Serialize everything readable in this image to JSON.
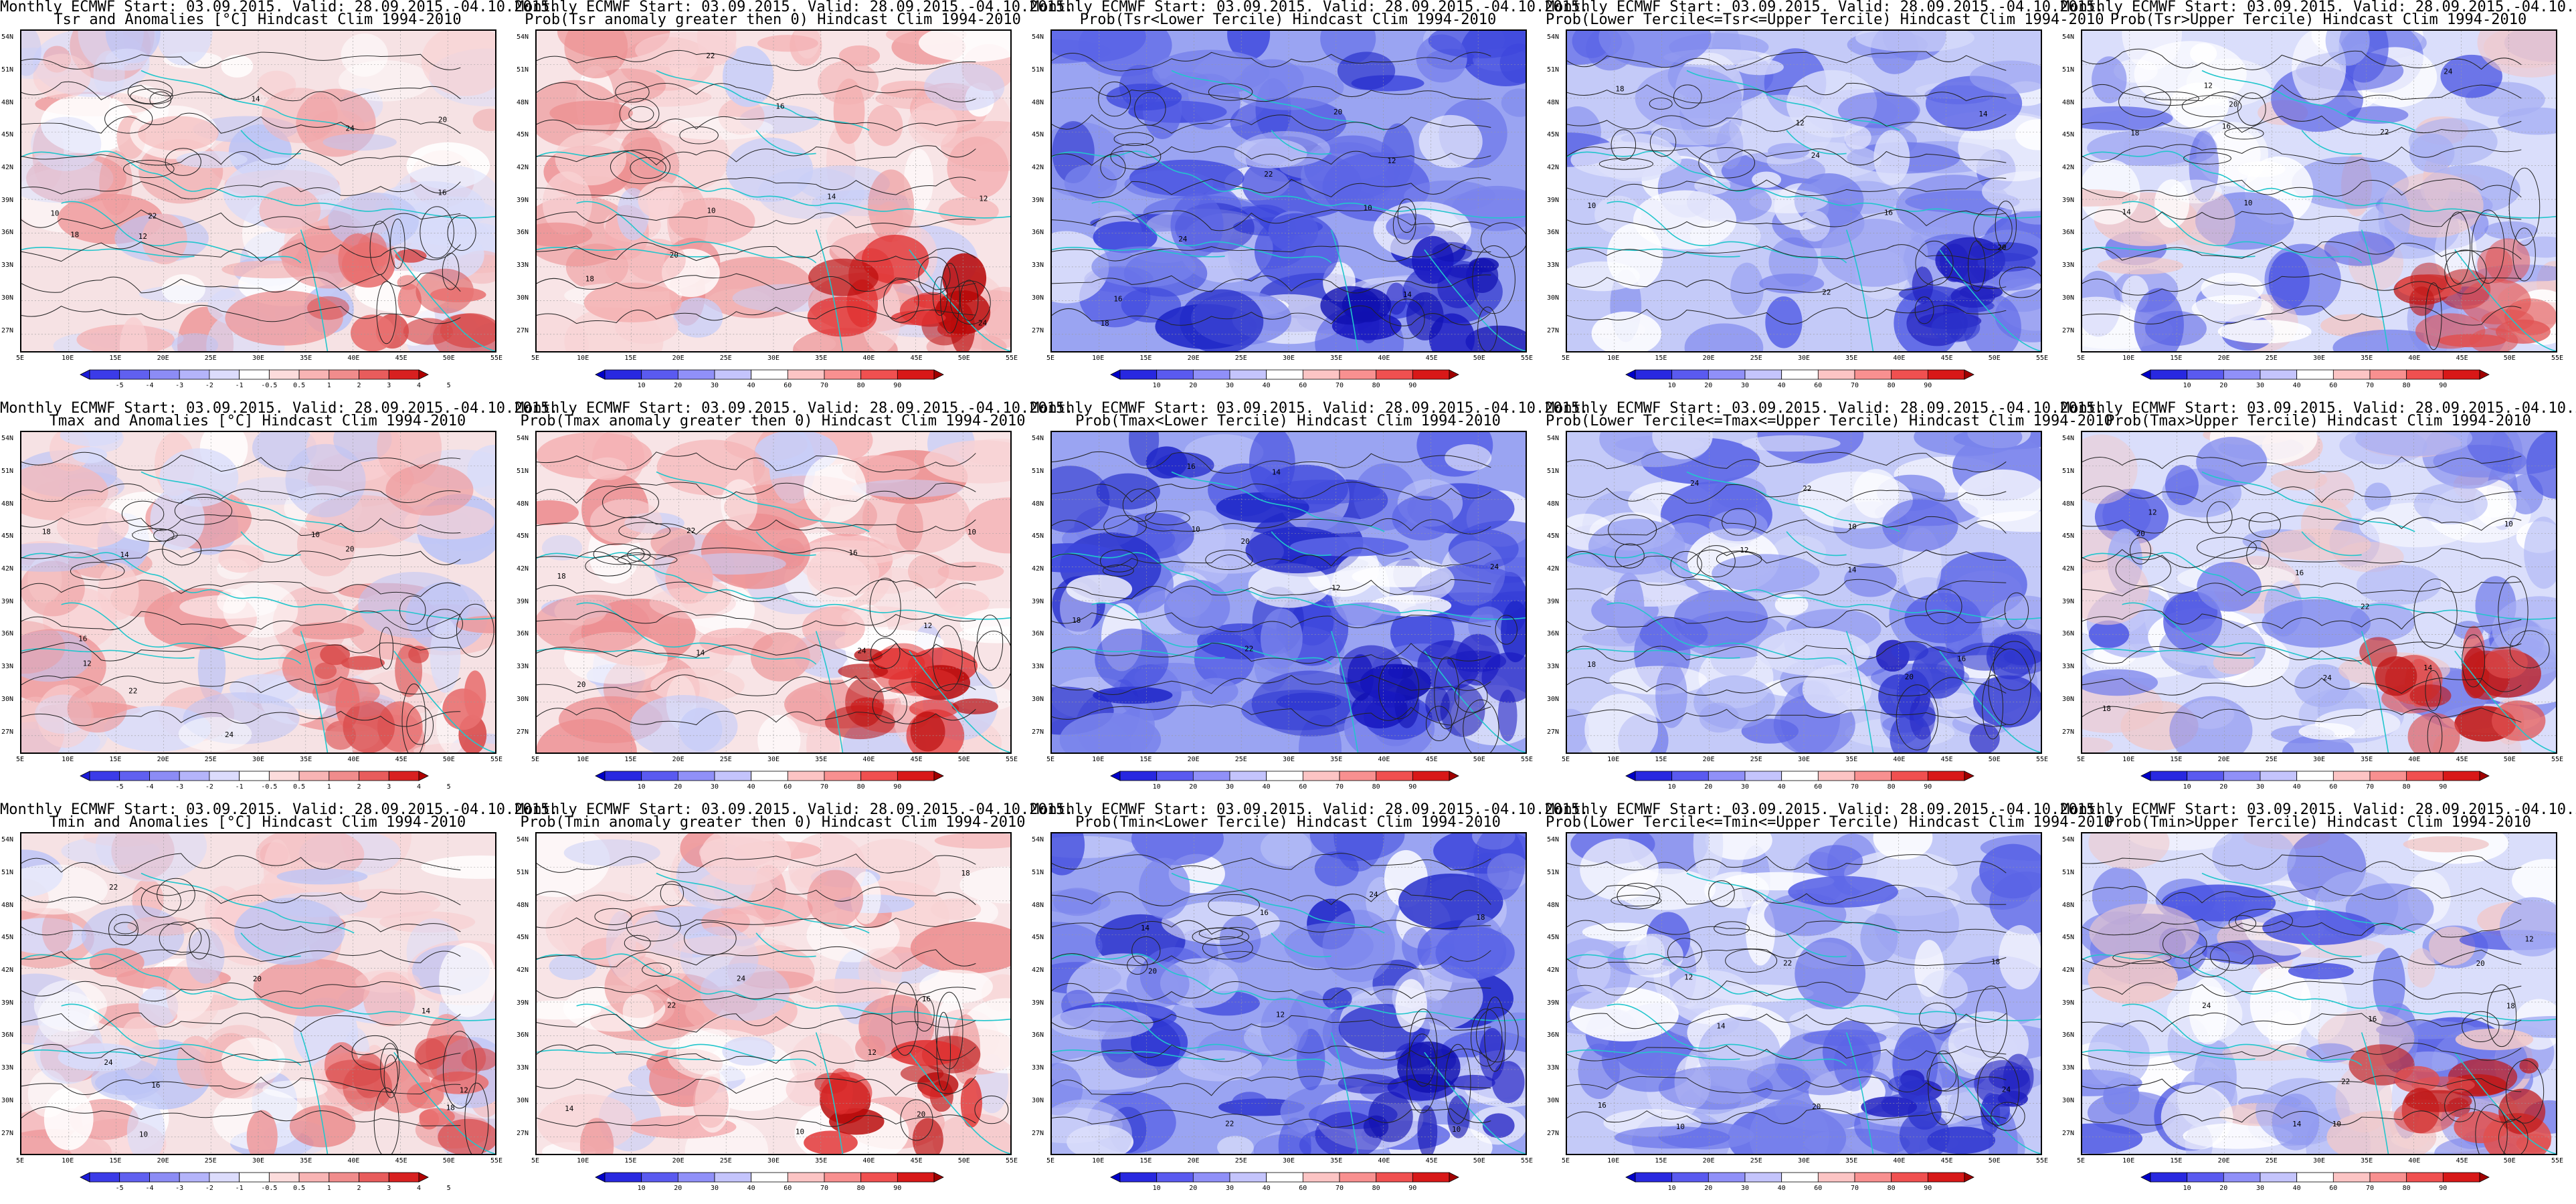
{
  "figure": {
    "title_line1": "Monthly ECMWF Start: 03.09.2015. Valid: 28.09.2015.-04.10.2015.",
    "lat_labels": [
      "54N",
      "51N",
      "48N",
      "45N",
      "42N",
      "39N",
      "36N",
      "33N",
      "30N",
      "27N"
    ],
    "lon_labels": [
      "5E",
      "10E",
      "15E",
      "20E",
      "25E",
      "30E",
      "35E",
      "40E",
      "45E",
      "50E",
      "55E"
    ],
    "contour_labels": [
      "10",
      "12",
      "14",
      "16",
      "18",
      "20",
      "22",
      "24",
      "26",
      "28"
    ]
  },
  "colorbars": {
    "anomaly": {
      "labels": [
        "-5",
        "-4",
        "-3",
        "-2",
        "-1",
        "-0.5",
        "0.5",
        "1",
        "2",
        "3",
        "4",
        "5"
      ],
      "colors": [
        "#1c1cd8",
        "#3b3be8",
        "#6060f0",
        "#8c8cf5",
        "#b4b4fa",
        "#dcdcfc",
        "#ffffff",
        "#fcdcdc",
        "#f8b4b4",
        "#f08c8c",
        "#e85c5c",
        "#d82020",
        "#b00000"
      ]
    },
    "probability": {
      "labels": [
        "10",
        "20",
        "30",
        "40",
        "60",
        "70",
        "80",
        "90"
      ],
      "colors": [
        "#0000c8",
        "#2828e0",
        "#5a5af0",
        "#9090f8",
        "#c4c4fc",
        "#ffffff",
        "#fcc4c4",
        "#f89090",
        "#f05050",
        "#d81818",
        "#a00000"
      ]
    }
  },
  "rows": [
    {
      "var": "Tsr",
      "panels": [
        {
          "title": "Tsr and Anomalies [°C] Hindcast Clim 1994-2010",
          "type": "anomaly"
        },
        {
          "title": "Prob(Tsr anomaly greater then 0) Hindcast Clim 1994-2010",
          "type": "prob-above"
        },
        {
          "title": "Prob(Tsr<Lower Tercile) Hindcast Clim 1994-2010",
          "type": "prob-lower"
        },
        {
          "title": "Prob(Lower Tercile<=Tsr<=Upper Tercile) Hindcast Clim 1994-2010",
          "type": "prob-middle"
        },
        {
          "title": "Prob(Tsr>Upper Tercile) Hindcast Clim 1994-2010",
          "type": "prob-upper"
        }
      ]
    },
    {
      "var": "Tmax",
      "panels": [
        {
          "title": "Tmax and Anomalies [°C] Hindcast Clim 1994-2010",
          "type": "anomaly"
        },
        {
          "title": "Prob(Tmax anomaly greater then 0) Hindcast Clim 1994-2010",
          "type": "prob-above"
        },
        {
          "title": "Prob(Tmax<Lower Tercile) Hindcast Clim 1994-2010",
          "type": "prob-lower"
        },
        {
          "title": "Prob(Lower Tercile<=Tmax<=Upper Tercile) Hindcast Clim 1994-2010",
          "type": "prob-middle"
        },
        {
          "title": "Prob(Tmax>Upper Tercile) Hindcast Clim 1994-2010",
          "type": "prob-upper"
        }
      ]
    },
    {
      "var": "Tmin",
      "panels": [
        {
          "title": "Tmin and Anomalies [°C] Hindcast Clim 1994-2010",
          "type": "anomaly"
        },
        {
          "title": "Prob(Tmin anomaly greater then 0) Hindcast Clim 1994-2010",
          "type": "prob-above"
        },
        {
          "title": "Prob(Tmin<Lower Tercile) Hindcast Clim 1994-2010",
          "type": "prob-lower"
        },
        {
          "title": "Prob(Lower Tercile<=Tmin<=Upper Tercile) Hindcast Clim 1994-2010",
          "type": "prob-middle"
        },
        {
          "title": "Prob(Tmin>Upper Tercile) Hindcast Clim 1994-2010",
          "type": "prob-upper"
        }
      ]
    }
  ]
}
